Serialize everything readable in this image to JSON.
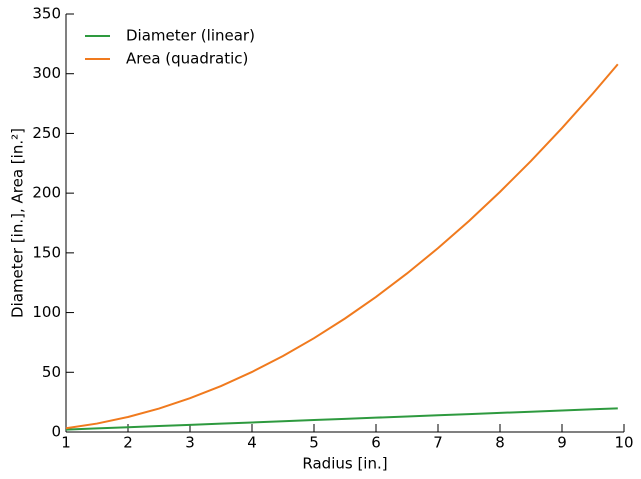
{
  "chart_data": {
    "type": "line",
    "xlabel": "Radius [in.]",
    "ylabel": "Diameter [in.], Area [in.²]",
    "x": [
      1,
      1.5,
      2,
      2.5,
      3,
      3.5,
      4,
      4.5,
      5,
      5.5,
      6,
      6.5,
      7,
      7.5,
      8,
      8.5,
      9,
      9.5,
      9.9
    ],
    "series": [
      {
        "name": "Diameter (linear)",
        "color": "#2e9a3f",
        "values": [
          2,
          3,
          4,
          5,
          6,
          7,
          8,
          9,
          10,
          11,
          12,
          13,
          14,
          15,
          16,
          17,
          18,
          19,
          19.8
        ]
      },
      {
        "name": "Area (quadratic)",
        "color": "#f07a1e",
        "values": [
          3.14,
          7.07,
          12.57,
          19.63,
          28.27,
          38.48,
          50.27,
          63.62,
          78.54,
          95.03,
          113.1,
          132.73,
          153.94,
          176.71,
          201.06,
          226.98,
          254.47,
          283.53,
          307.91
        ]
      }
    ],
    "xlim": [
      1,
      10
    ],
    "xticks": [
      1,
      2,
      3,
      4,
      5,
      6,
      7,
      8,
      9,
      10
    ],
    "ylim": [
      0,
      350
    ],
    "yticks": [
      0,
      50,
      100,
      150,
      200,
      250,
      300,
      350
    ],
    "legend": "upper left",
    "grid": false
  }
}
